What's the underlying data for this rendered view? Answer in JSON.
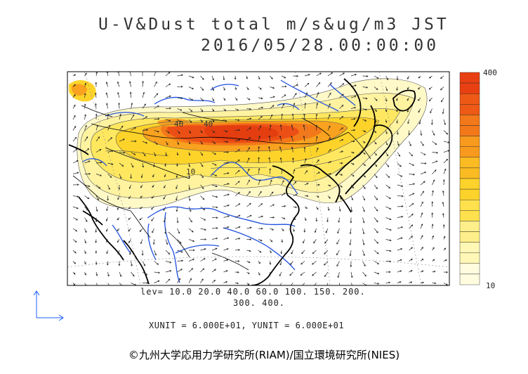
{
  "title_line1": "U-V&Dust total m/s&ug/m3 JST",
  "title_line2": "2016/05/28.00:00:00",
  "levels_line1": "lev= 10.0 20.0 40.0 60.0 100. 150. 200.",
  "levels_line2": "300. 400.",
  "units_line": "XUNIT = 6.000E+01, YUNIT = 6.000E+01",
  "credit": "©九州大学応用力学研究所(RIAM)/国立環境研究所(NIES)",
  "colorbar_max": "400",
  "colorbar_min": "10",
  "contour_labels": [
    "40",
    "40",
    "10"
  ],
  "chart_data": {
    "type": "heatmap",
    "variable": "U-V&Dust total",
    "units": "m/s&ug/m3",
    "timestamp": "2016/05/28.00:00:00 JST",
    "contour_levels": [
      10,
      20,
      40,
      60,
      100,
      150,
      200,
      300,
      400
    ],
    "colorbar_range": [
      10,
      400
    ],
    "colorbar_colors": [
      "#fffce0",
      "#fff7b5",
      "#ffef8a",
      "#ffe14d",
      "#fdd22a",
      "#fbbb22",
      "#f89a1e",
      "#f3781a",
      "#ee5916",
      "#e84012"
    ],
    "vector_reference": {
      "xunit": 60.0,
      "yunit": 60.0
    },
    "coastline_color": "#000000",
    "river_color": "#1f4fe0"
  }
}
